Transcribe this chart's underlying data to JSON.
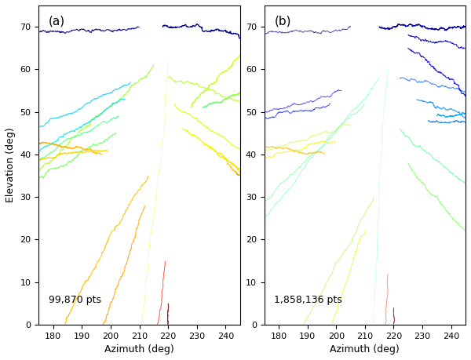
{
  "title_a": "(a)",
  "title_b": "(b)",
  "label_a": "99,870 pts",
  "label_b": "1,858,136 pts",
  "xlabel": "Azimuth (deg)",
  "ylabel": "Elevation (deg)",
  "xlim": [
    175,
    245
  ],
  "ylim": [
    0,
    75
  ],
  "xticks": [
    180,
    190,
    200,
    210,
    220,
    230,
    240
  ],
  "yticks": [
    0,
    10,
    20,
    30,
    40,
    50,
    60,
    70
  ],
  "figsize": [
    6.0,
    4.59
  ],
  "dpi": 100,
  "seed_a": 7,
  "seed_b": 13,
  "n_pts_a": 99870,
  "n_pts_b": 1858136,
  "markersize_a": 0.5,
  "markersize_b": 0.4
}
